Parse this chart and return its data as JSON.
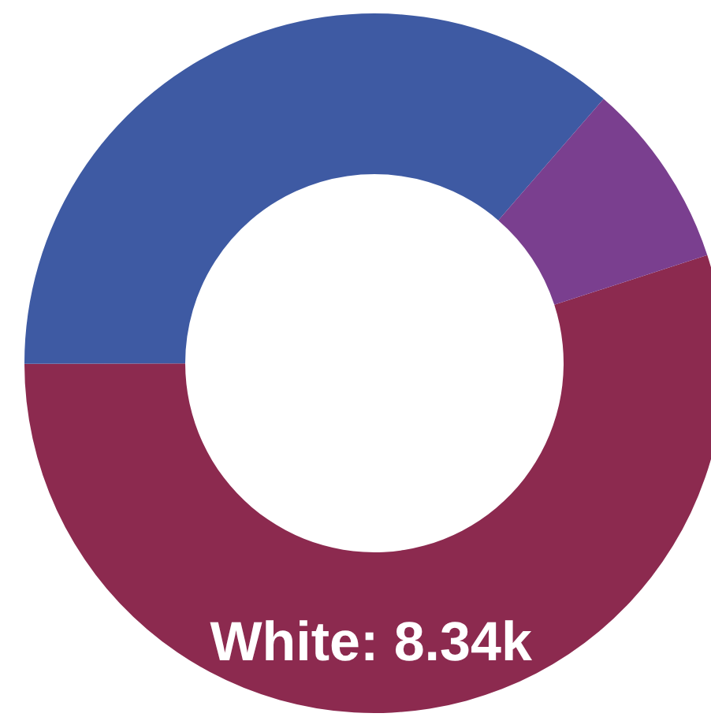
{
  "chart_data": {
    "type": "donut",
    "categories": [
      "White",
      null,
      null
    ],
    "values": [
      8.34,
      5.52,
      1.31
    ],
    "colors": [
      "#8c2a4f",
      "#3e5aa3",
      "#7a3f8f"
    ],
    "value_labels": [
      "8.34k",
      null,
      null
    ]
  }
}
